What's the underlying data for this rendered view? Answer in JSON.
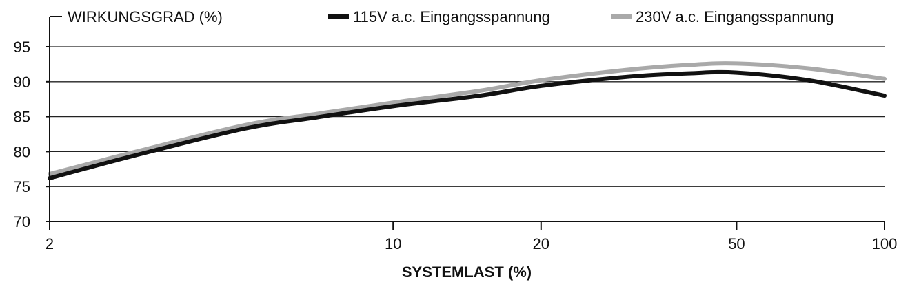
{
  "chart_data": {
    "type": "line",
    "ylabel": "WIRKUNGSGRAD (%)",
    "xlabel": "SYSTEMLAST (%)",
    "x_scale": "log",
    "x_ticks": [
      2,
      10,
      20,
      50,
      100
    ],
    "x_tick_labels": [
      "2",
      "10",
      "20",
      "50",
      "100"
    ],
    "xlim": [
      2,
      100
    ],
    "y_ticks": [
      70,
      75,
      80,
      85,
      90,
      95
    ],
    "y_tick_labels": [
      "70",
      "75",
      "80",
      "85",
      "90",
      "95"
    ],
    "ylim": [
      70,
      97
    ],
    "grid": "horizontal",
    "legend_position": "top",
    "series": [
      {
        "name": "115V a.c. Eingangsspannung",
        "color": "#111111",
        "x": [
          2,
          3,
          5,
          7,
          10,
          15,
          20,
          30,
          40,
          50,
          70,
          100
        ],
        "y": [
          76.2,
          79.5,
          83.3,
          84.9,
          86.5,
          88.0,
          89.4,
          90.7,
          91.2,
          91.3,
          90.2,
          88.0
        ]
      },
      {
        "name": "230V a.c. Eingangsspannung",
        "color": "#a9a9a9",
        "x": [
          2,
          3,
          5,
          7,
          10,
          15,
          20,
          30,
          40,
          50,
          70,
          100
        ],
        "y": [
          76.8,
          80.0,
          83.8,
          85.4,
          87.0,
          88.7,
          90.2,
          91.7,
          92.4,
          92.6,
          91.9,
          90.4
        ]
      }
    ]
  }
}
